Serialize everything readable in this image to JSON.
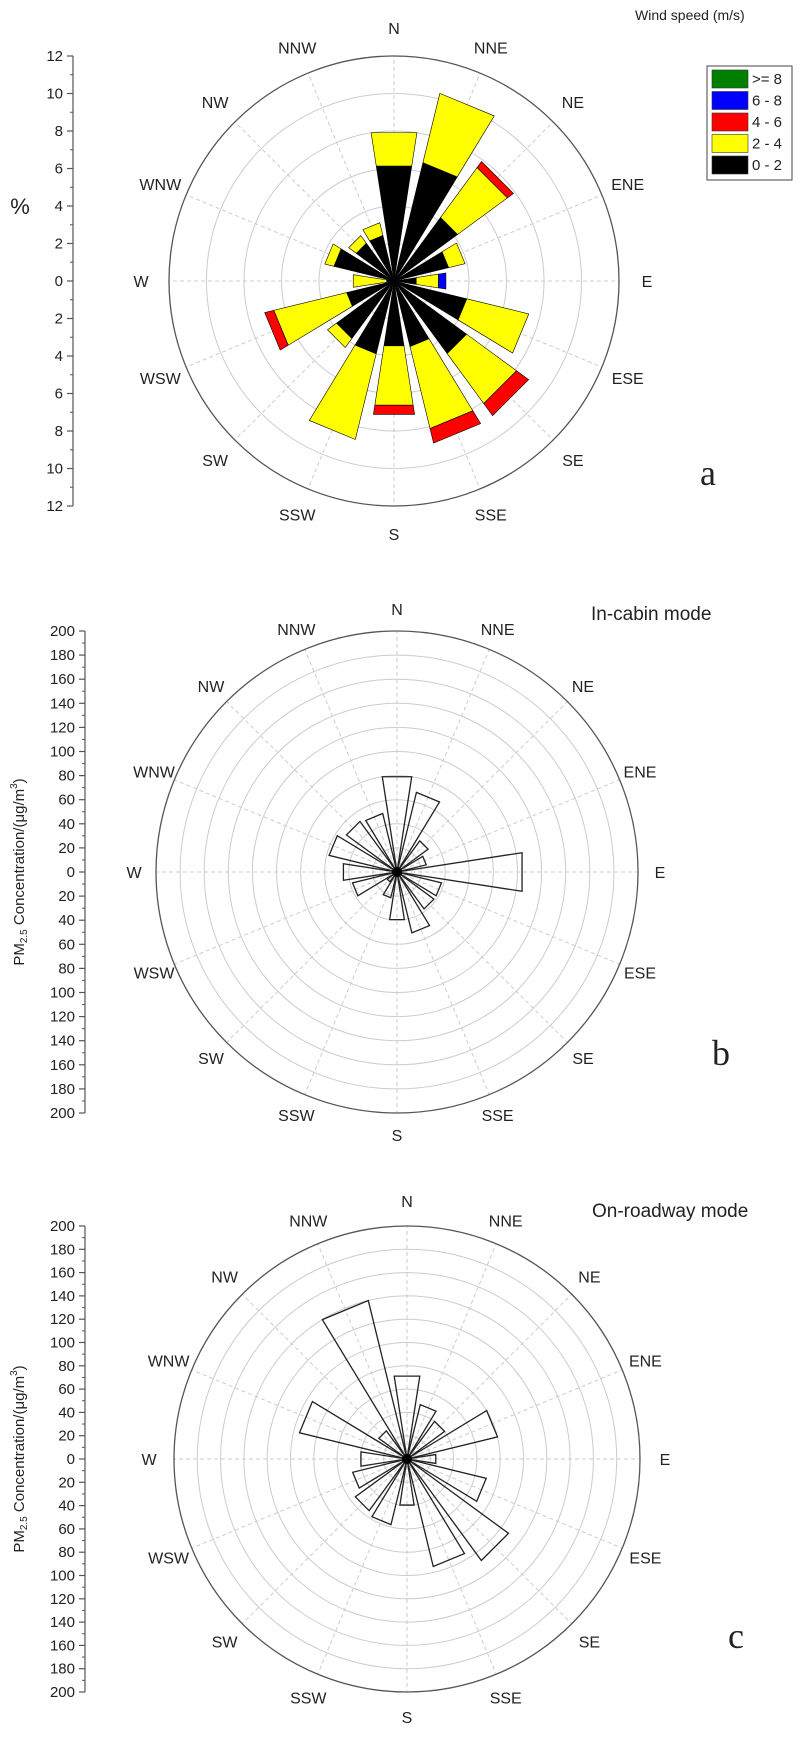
{
  "directions": [
    "N",
    "NNE",
    "NE",
    "ENE",
    "E",
    "ESE",
    "SE",
    "SSE",
    "S",
    "SSW",
    "SW",
    "WSW",
    "W",
    "WNW",
    "NW",
    "NNW"
  ],
  "colors": {
    "speed_0_2": "#000000",
    "speed_2_4": "#ffff00",
    "speed_4_6": "#ff0000",
    "speed_6_8": "#0000ff",
    "speed_ge_8": "#008000",
    "grid": "#cccccc",
    "axis": "#555555"
  },
  "chart_data": [
    {
      "id": "a",
      "type": "rose",
      "panel_label": "a",
      "ylabel": "%",
      "rlim": [
        0,
        12
      ],
      "ticks": [
        "12",
        "10",
        "8",
        "6",
        "4",
        "2",
        "0",
        "2",
        "4",
        "6",
        "8",
        "10",
        "12"
      ],
      "legend_title": "Wind speed (m/s)",
      "legend_position": "top-right",
      "legend": [
        {
          "label": ">= 8",
          "color": "#008000"
        },
        {
          "label": "6 - 8",
          "color": "#0000ff"
        },
        {
          "label": "4 - 6",
          "color": "#ff0000"
        },
        {
          "label": "2 - 4",
          "color": "#ffff00"
        },
        {
          "label": "0 - 2",
          "color": "#000000"
        }
      ],
      "series": [
        {
          "name": "0 - 2",
          "values": [
            6.2,
            6.5,
            4.2,
            3.0,
            1.2,
            4.0,
            4.8,
            3.6,
            3.5,
            4.0,
            3.8,
            2.6,
            0.4,
            3.3,
            2.5,
            2.5
          ]
        },
        {
          "name": "2 - 4",
          "values": [
            1.8,
            3.8,
            3.3,
            0.9,
            1.2,
            3.4,
            3.3,
            4.5,
            3.2,
            4.7,
            0.6,
            4.0,
            1.8,
            0.5,
            0.5,
            0.7
          ]
        },
        {
          "name": "4 - 6",
          "values": [
            0.0,
            0.0,
            0.4,
            0.0,
            0.0,
            0.0,
            0.8,
            0.8,
            0.5,
            0.0,
            0.0,
            0.5,
            0.0,
            0.0,
            0.0,
            0.0
          ]
        },
        {
          "name": "6 - 8",
          "values": [
            0.0,
            0.0,
            0.0,
            0.0,
            0.4,
            0.0,
            0.0,
            0.0,
            0.0,
            0.0,
            0.0,
            0.0,
            0.0,
            0.0,
            0.0,
            0.0
          ]
        },
        {
          "name": ">= 8",
          "values": [
            0,
            0,
            0,
            0,
            0,
            0,
            0,
            0,
            0,
            0,
            0,
            0,
            0,
            0,
            0,
            0
          ]
        }
      ]
    },
    {
      "id": "b",
      "type": "rose",
      "panel_label": "b",
      "title": "In-cabin mode",
      "ylabel": "PM2.5 Concentration/(μg/m3)",
      "rlim": [
        0,
        200
      ],
      "ticks": [
        "200",
        "180",
        "160",
        "140",
        "120",
        "100",
        "80",
        "60",
        "40",
        "20",
        "0",
        "20",
        "40",
        "60",
        "80",
        "100",
        "120",
        "140",
        "160",
        "180",
        "200"
      ],
      "values": [
        80,
        68,
        32,
        25,
        105,
        38,
        38,
        52,
        40,
        22,
        10,
        38,
        45,
        58,
        52,
        50
      ]
    },
    {
      "id": "c",
      "type": "rose",
      "panel_label": "c",
      "title": "On-roadway mode",
      "ylabel": "PM2.5 Concentration/(μg/m3)",
      "rlim": [
        0,
        200
      ],
      "ticks": [
        "200",
        "180",
        "160",
        "140",
        "120",
        "100",
        "80",
        "60",
        "40",
        "20",
        "0",
        "20",
        "40",
        "60",
        "80",
        "100",
        "120",
        "140",
        "160",
        "180",
        "200"
      ],
      "values": [
        72,
        48,
        40,
        80,
        25,
        70,
        108,
        95,
        40,
        58,
        55,
        48,
        40,
        95,
        30,
        140
      ]
    }
  ]
}
